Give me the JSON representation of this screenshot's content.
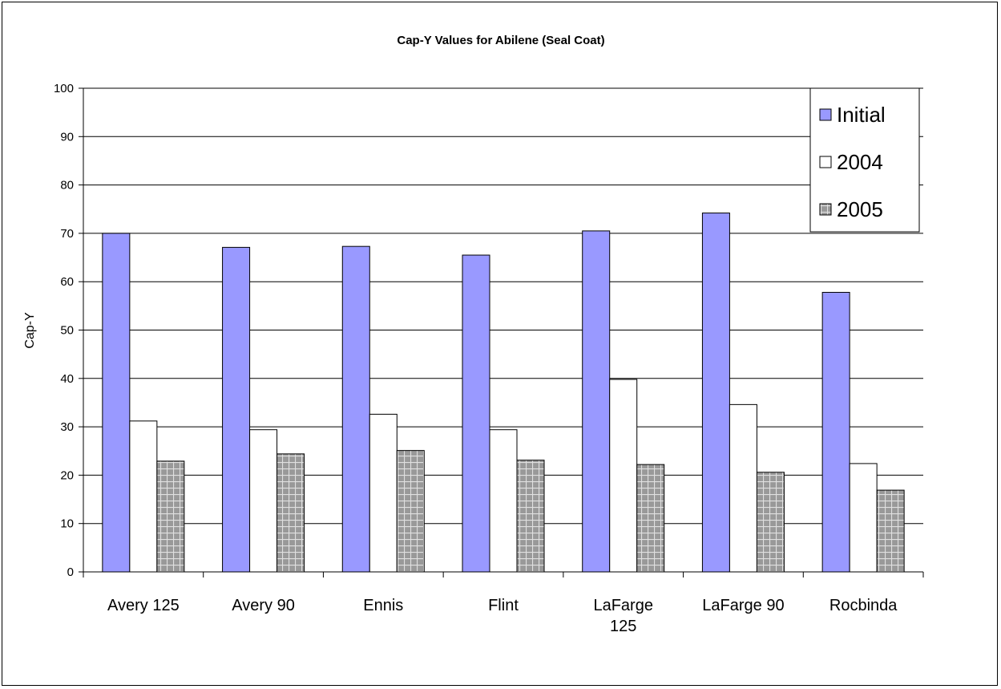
{
  "chart_data": {
    "type": "bar",
    "title": "Cap-Y Values for Abilene (Seal Coat)",
    "xlabel": "",
    "ylabel": "Cap-Y",
    "ylim": [
      0,
      100
    ],
    "yticks": [
      0,
      10,
      20,
      30,
      40,
      50,
      60,
      70,
      80,
      90,
      100
    ],
    "grid": true,
    "legend_position": "top-right",
    "categories": [
      "Avery 125",
      "Avery 90",
      "Ennis",
      "Flint",
      "LaFarge 125",
      "LaFarge 90",
      "Rocbinda"
    ],
    "category_lines": [
      [
        "Avery 125"
      ],
      [
        "Avery 90"
      ],
      [
        "Ennis"
      ],
      [
        "Flint"
      ],
      [
        "LaFarge",
        "125"
      ],
      [
        "LaFarge 90"
      ],
      [
        "Rocbinda"
      ]
    ],
    "series": [
      {
        "name": "Initial",
        "color": "#9999ff",
        "pattern": "solid",
        "values": [
          70,
          67.1,
          67.3,
          65.5,
          70.5,
          74.2,
          57.8
        ]
      },
      {
        "name": "2004",
        "color": "#ffffff",
        "pattern": "solid",
        "values": [
          31.2,
          29.4,
          32.6,
          29.4,
          39.8,
          34.6,
          22.4
        ]
      },
      {
        "name": "2005",
        "color": "#999999",
        "pattern": "grid",
        "values": [
          22.9,
          24.4,
          25.1,
          23.1,
          22.2,
          20.6,
          16.9
        ]
      }
    ]
  }
}
